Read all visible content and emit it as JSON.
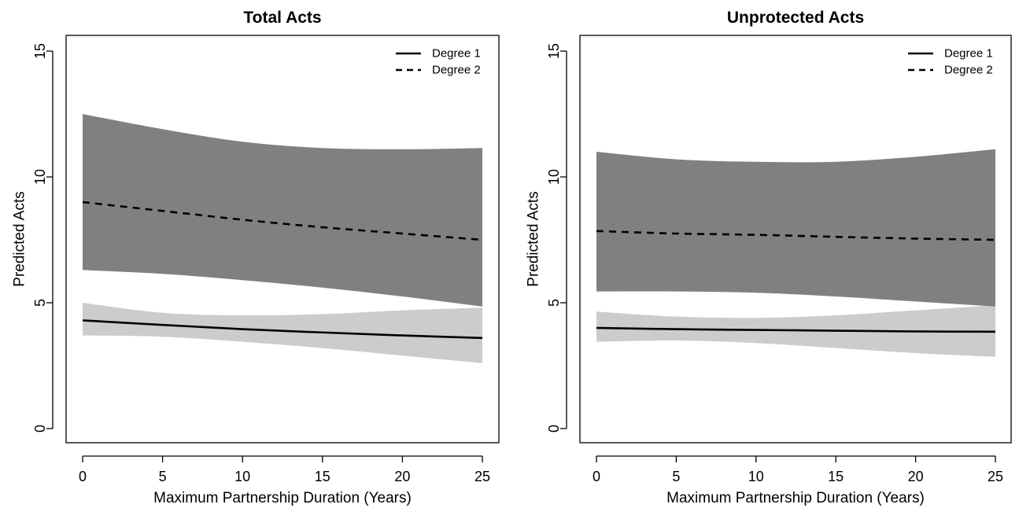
{
  "chart_data": [
    {
      "type": "line",
      "title": "Total Acts",
      "xlabel": "Maximum Partnership Duration (Years)",
      "ylabel": "Predicted Acts",
      "xlim": [
        0,
        25
      ],
      "ylim": [
        0,
        15
      ],
      "xticks": [
        "0",
        "5",
        "10",
        "15",
        "20",
        "25"
      ],
      "yticks": [
        "0",
        "5",
        "10",
        "15"
      ],
      "legend_position": "top-right",
      "grid": false,
      "x": [
        0,
        5,
        10,
        15,
        20,
        25
      ],
      "series": [
        {
          "name": "Degree 1",
          "line_style": "solid",
          "band_color": "#cccccc",
          "values": [
            4.3,
            4.12,
            3.95,
            3.82,
            3.7,
            3.6
          ],
          "lower": [
            3.7,
            3.65,
            3.45,
            3.2,
            2.9,
            2.6
          ],
          "upper": [
            5.0,
            4.6,
            4.5,
            4.55,
            4.7,
            4.8
          ]
        },
        {
          "name": "Degree 2",
          "line_style": "dashed",
          "band_color": "#808080",
          "values": [
            9.0,
            8.65,
            8.3,
            8.0,
            7.75,
            7.5
          ],
          "lower": [
            6.3,
            6.15,
            5.9,
            5.6,
            5.25,
            4.85
          ],
          "upper": [
            12.5,
            11.9,
            11.4,
            11.15,
            11.1,
            11.15
          ]
        }
      ]
    },
    {
      "type": "line",
      "title": "Unprotected Acts",
      "xlabel": "Maximum Partnership Duration (Years)",
      "ylabel": "Predicted Acts",
      "xlim": [
        0,
        25
      ],
      "ylim": [
        0,
        15
      ],
      "xticks": [
        "0",
        "5",
        "10",
        "15",
        "20",
        "25"
      ],
      "yticks": [
        "0",
        "5",
        "10",
        "15"
      ],
      "legend_position": "top-right",
      "grid": false,
      "x": [
        0,
        5,
        10,
        15,
        20,
        25
      ],
      "series": [
        {
          "name": "Degree 1",
          "line_style": "solid",
          "band_color": "#cccccc",
          "values": [
            4.0,
            3.95,
            3.92,
            3.89,
            3.86,
            3.85
          ],
          "lower": [
            3.45,
            3.5,
            3.4,
            3.2,
            3.0,
            2.85
          ],
          "upper": [
            4.65,
            4.45,
            4.4,
            4.5,
            4.7,
            4.9
          ]
        },
        {
          "name": "Degree 2",
          "line_style": "dashed",
          "band_color": "#808080",
          "values": [
            7.85,
            7.75,
            7.7,
            7.62,
            7.55,
            7.5
          ],
          "lower": [
            5.45,
            5.45,
            5.4,
            5.25,
            5.05,
            4.85
          ],
          "upper": [
            11.0,
            10.7,
            10.6,
            10.6,
            10.8,
            11.1
          ]
        }
      ]
    }
  ]
}
